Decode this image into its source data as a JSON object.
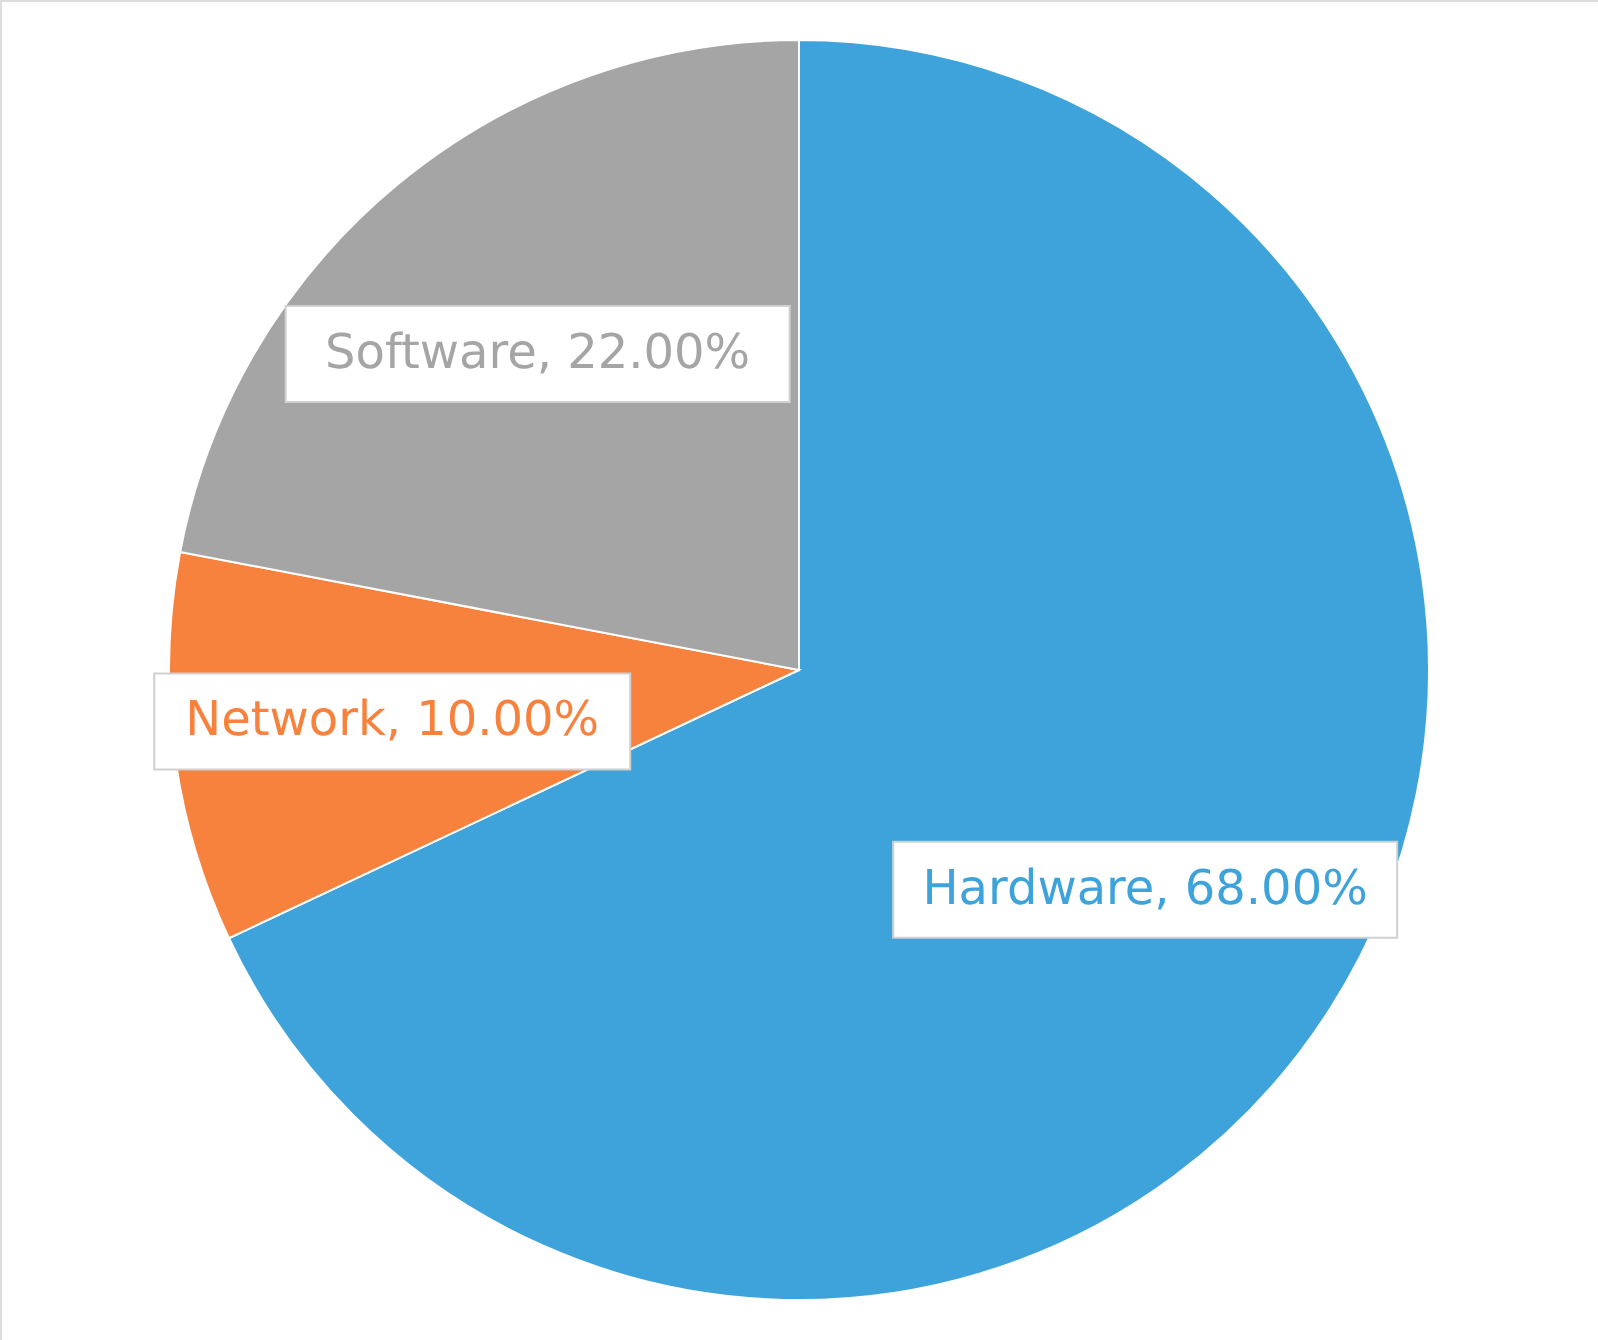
{
  "chart_data": {
    "type": "pie",
    "categories": [
      "Hardware",
      "Network",
      "Software"
    ],
    "values": [
      68,
      10,
      22
    ],
    "value_labels": [
      "68.00%",
      "10.00%",
      "22.00%"
    ],
    "colors": [
      "#3ea3da",
      "#f6823e",
      "#a5a5a5"
    ]
  }
}
